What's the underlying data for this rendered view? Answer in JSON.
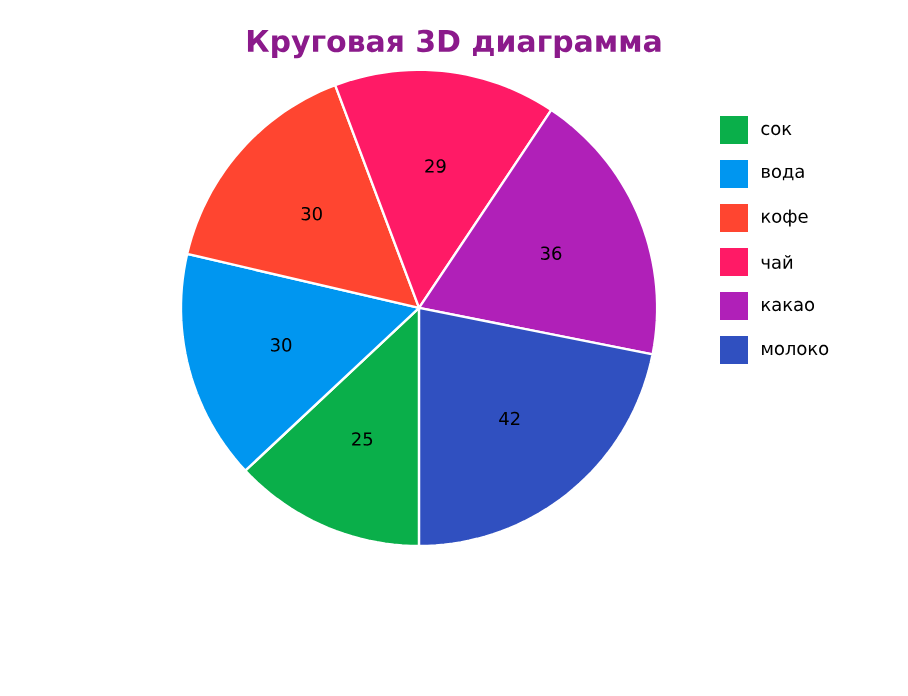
{
  "chart_data": {
    "type": "pie",
    "title": "Круговая 3D диаграмма",
    "categories": [
      "сок",
      "вода",
      "кофе",
      "чай",
      "какао",
      "молоко"
    ],
    "values": [
      25,
      30,
      30,
      29,
      36,
      42
    ],
    "colors": [
      "#0aaf4a",
      "#0096f0",
      "#ff4530",
      "#ff1a66",
      "#b020b8",
      "#3050c0"
    ],
    "data_labels": true,
    "legend": "right"
  }
}
